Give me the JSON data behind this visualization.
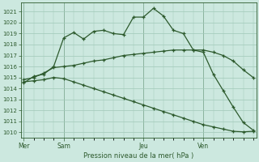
{
  "bg_color": "#cce8df",
  "grid_color": "#a0c8b8",
  "line_color": "#2d5a2d",
  "ylim": [
    1009.5,
    1021.8
  ],
  "yticks": [
    1010,
    1011,
    1012,
    1013,
    1014,
    1015,
    1016,
    1017,
    1018,
    1019,
    1020,
    1021
  ],
  "xlabel": "Pression niveau de la mer( hPa )",
  "xlabel_color": "#2d5a2d",
  "xtick_labels": [
    "Mer",
    "Sam",
    "Jeu",
    "Ven"
  ],
  "xtick_positions": [
    0,
    4,
    12,
    18
  ],
  "xlim": [
    -0.3,
    23.3
  ],
  "series1_x": [
    0,
    1,
    2,
    3,
    4,
    5,
    6,
    7,
    8,
    9,
    10,
    11,
    12,
    13,
    14,
    15,
    16,
    17,
    18,
    19,
    20,
    21,
    22,
    23
  ],
  "series1_y": [
    1014.5,
    1015.1,
    1015.3,
    1016.0,
    1018.6,
    1019.1,
    1018.5,
    1019.2,
    1019.3,
    1019.0,
    1018.9,
    1020.5,
    1020.5,
    1021.3,
    1020.6,
    1019.3,
    1019.0,
    1017.5,
    1017.3,
    1015.3,
    1013.8,
    1012.3,
    1010.9,
    1010.2
  ],
  "series2_x": [
    0,
    1,
    2,
    3,
    4,
    5,
    6,
    7,
    8,
    9,
    10,
    11,
    12,
    13,
    14,
    15,
    16,
    17,
    18,
    19,
    20,
    21,
    22,
    23
  ],
  "series2_y": [
    1014.8,
    1015.0,
    1015.4,
    1015.9,
    1016.0,
    1016.1,
    1016.3,
    1016.5,
    1016.6,
    1016.8,
    1017.0,
    1017.1,
    1017.2,
    1017.3,
    1017.4,
    1017.5,
    1017.5,
    1017.5,
    1017.5,
    1017.3,
    1017.0,
    1016.5,
    1015.7,
    1015.0
  ],
  "series3_x": [
    0,
    1,
    2,
    3,
    4,
    5,
    6,
    7,
    8,
    9,
    10,
    11,
    12,
    13,
    14,
    15,
    16,
    17,
    18,
    19,
    20,
    21,
    22,
    23
  ],
  "series3_y": [
    1014.6,
    1014.7,
    1014.8,
    1015.0,
    1014.9,
    1014.6,
    1014.3,
    1014.0,
    1013.7,
    1013.4,
    1013.1,
    1012.8,
    1012.5,
    1012.2,
    1011.9,
    1011.6,
    1011.3,
    1011.0,
    1010.7,
    1010.5,
    1010.3,
    1010.1,
    1010.05,
    1010.1
  ],
  "vline_positions": [
    0,
    4,
    12,
    18
  ],
  "n_points": 24
}
